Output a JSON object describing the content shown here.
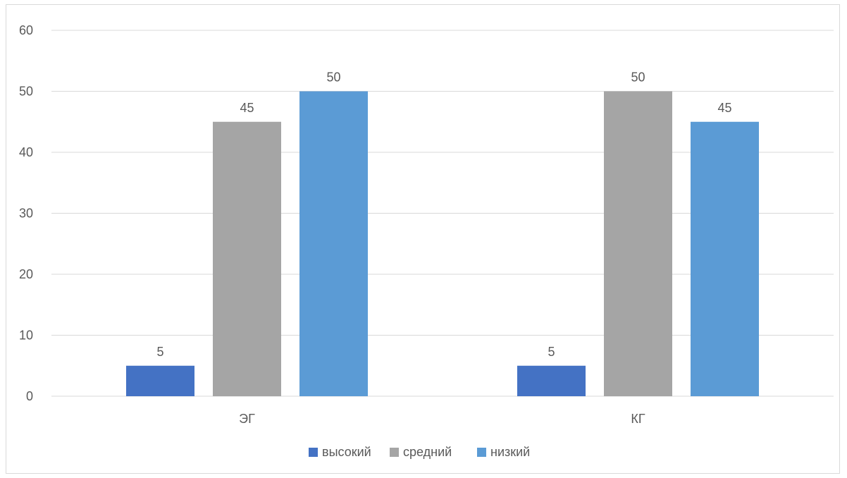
{
  "chart_data": {
    "type": "bar",
    "categories": [
      "ЭГ",
      "КГ"
    ],
    "series": [
      {
        "name": "высокий",
        "values": [
          5,
          5
        ],
        "color": "#4472C4"
      },
      {
        "name": "средний",
        "values": [
          45,
          50
        ],
        "color": "#A5A5A5"
      },
      {
        "name": "низкий",
        "values": [
          50,
          45
        ],
        "color": "#5B9BD5"
      }
    ],
    "ylim": [
      0,
      60
    ],
    "yticks": [
      0,
      10,
      20,
      30,
      40,
      50,
      60
    ],
    "grid": true,
    "legend_position": "bottom",
    "data_labels": true
  }
}
